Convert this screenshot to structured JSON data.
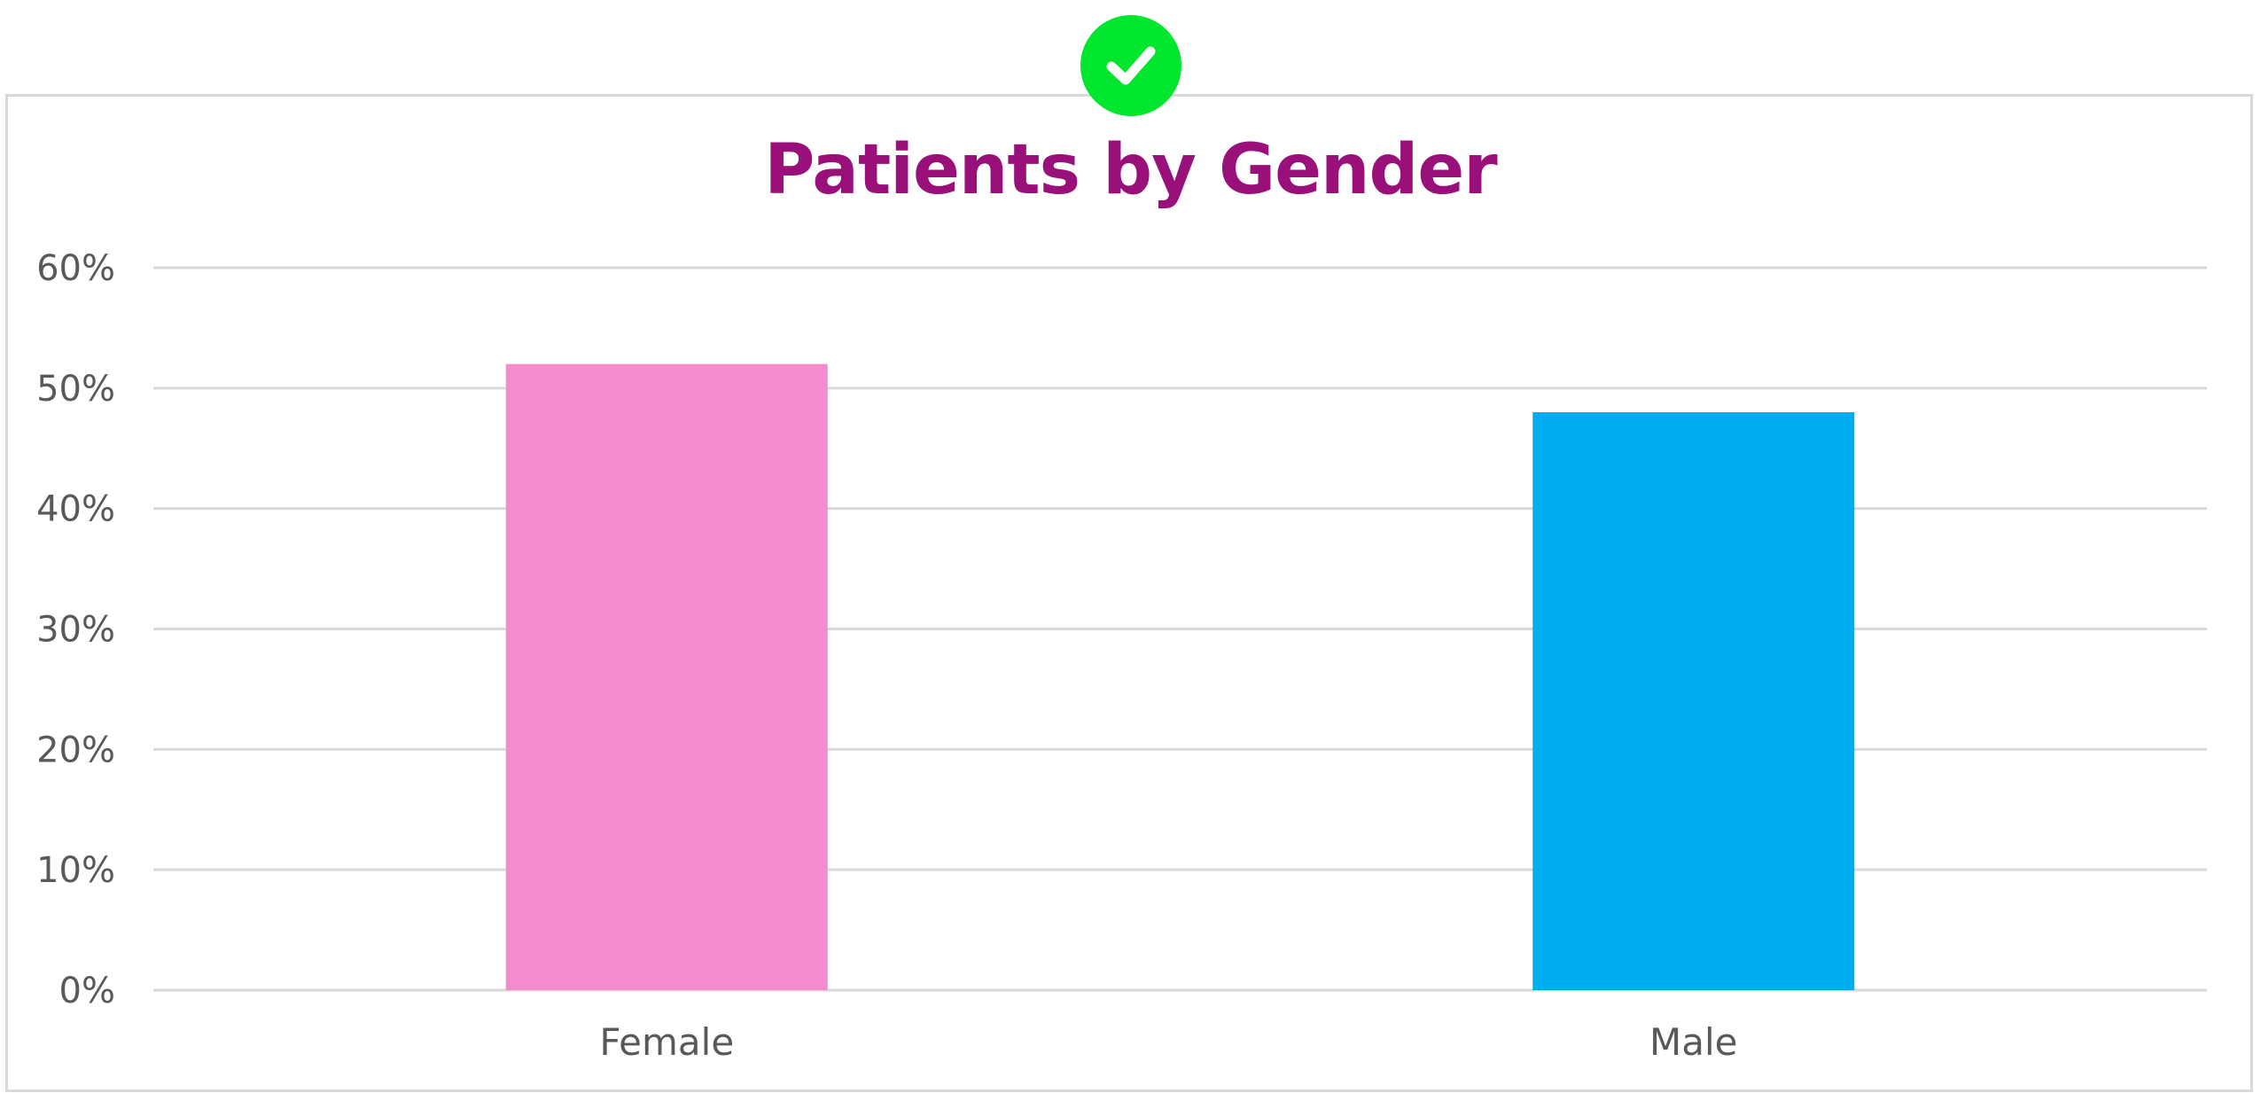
{
  "badge": {
    "icon": "checkmark-icon",
    "color": "#00e52d"
  },
  "chart_data": {
    "type": "bar",
    "title": "Patients by Gender",
    "title_color": "#99107a",
    "categories": [
      "Female",
      "Male"
    ],
    "values": [
      0.52,
      0.48
    ],
    "bar_colors": [
      "#f38bcc",
      "#00aeef"
    ],
    "ylim": [
      0,
      0.6
    ],
    "yticks": [
      {
        "value": 0.0,
        "label": "0%"
      },
      {
        "value": 0.1,
        "label": "10%"
      },
      {
        "value": 0.2,
        "label": "20%"
      },
      {
        "value": 0.3,
        "label": "30%"
      },
      {
        "value": 0.4,
        "label": "40%"
      },
      {
        "value": 0.5,
        "label": "50%"
      },
      {
        "value": 0.6,
        "label": "60%"
      }
    ],
    "xlabel": "",
    "ylabel": "",
    "grid": true,
    "legend": "none"
  }
}
